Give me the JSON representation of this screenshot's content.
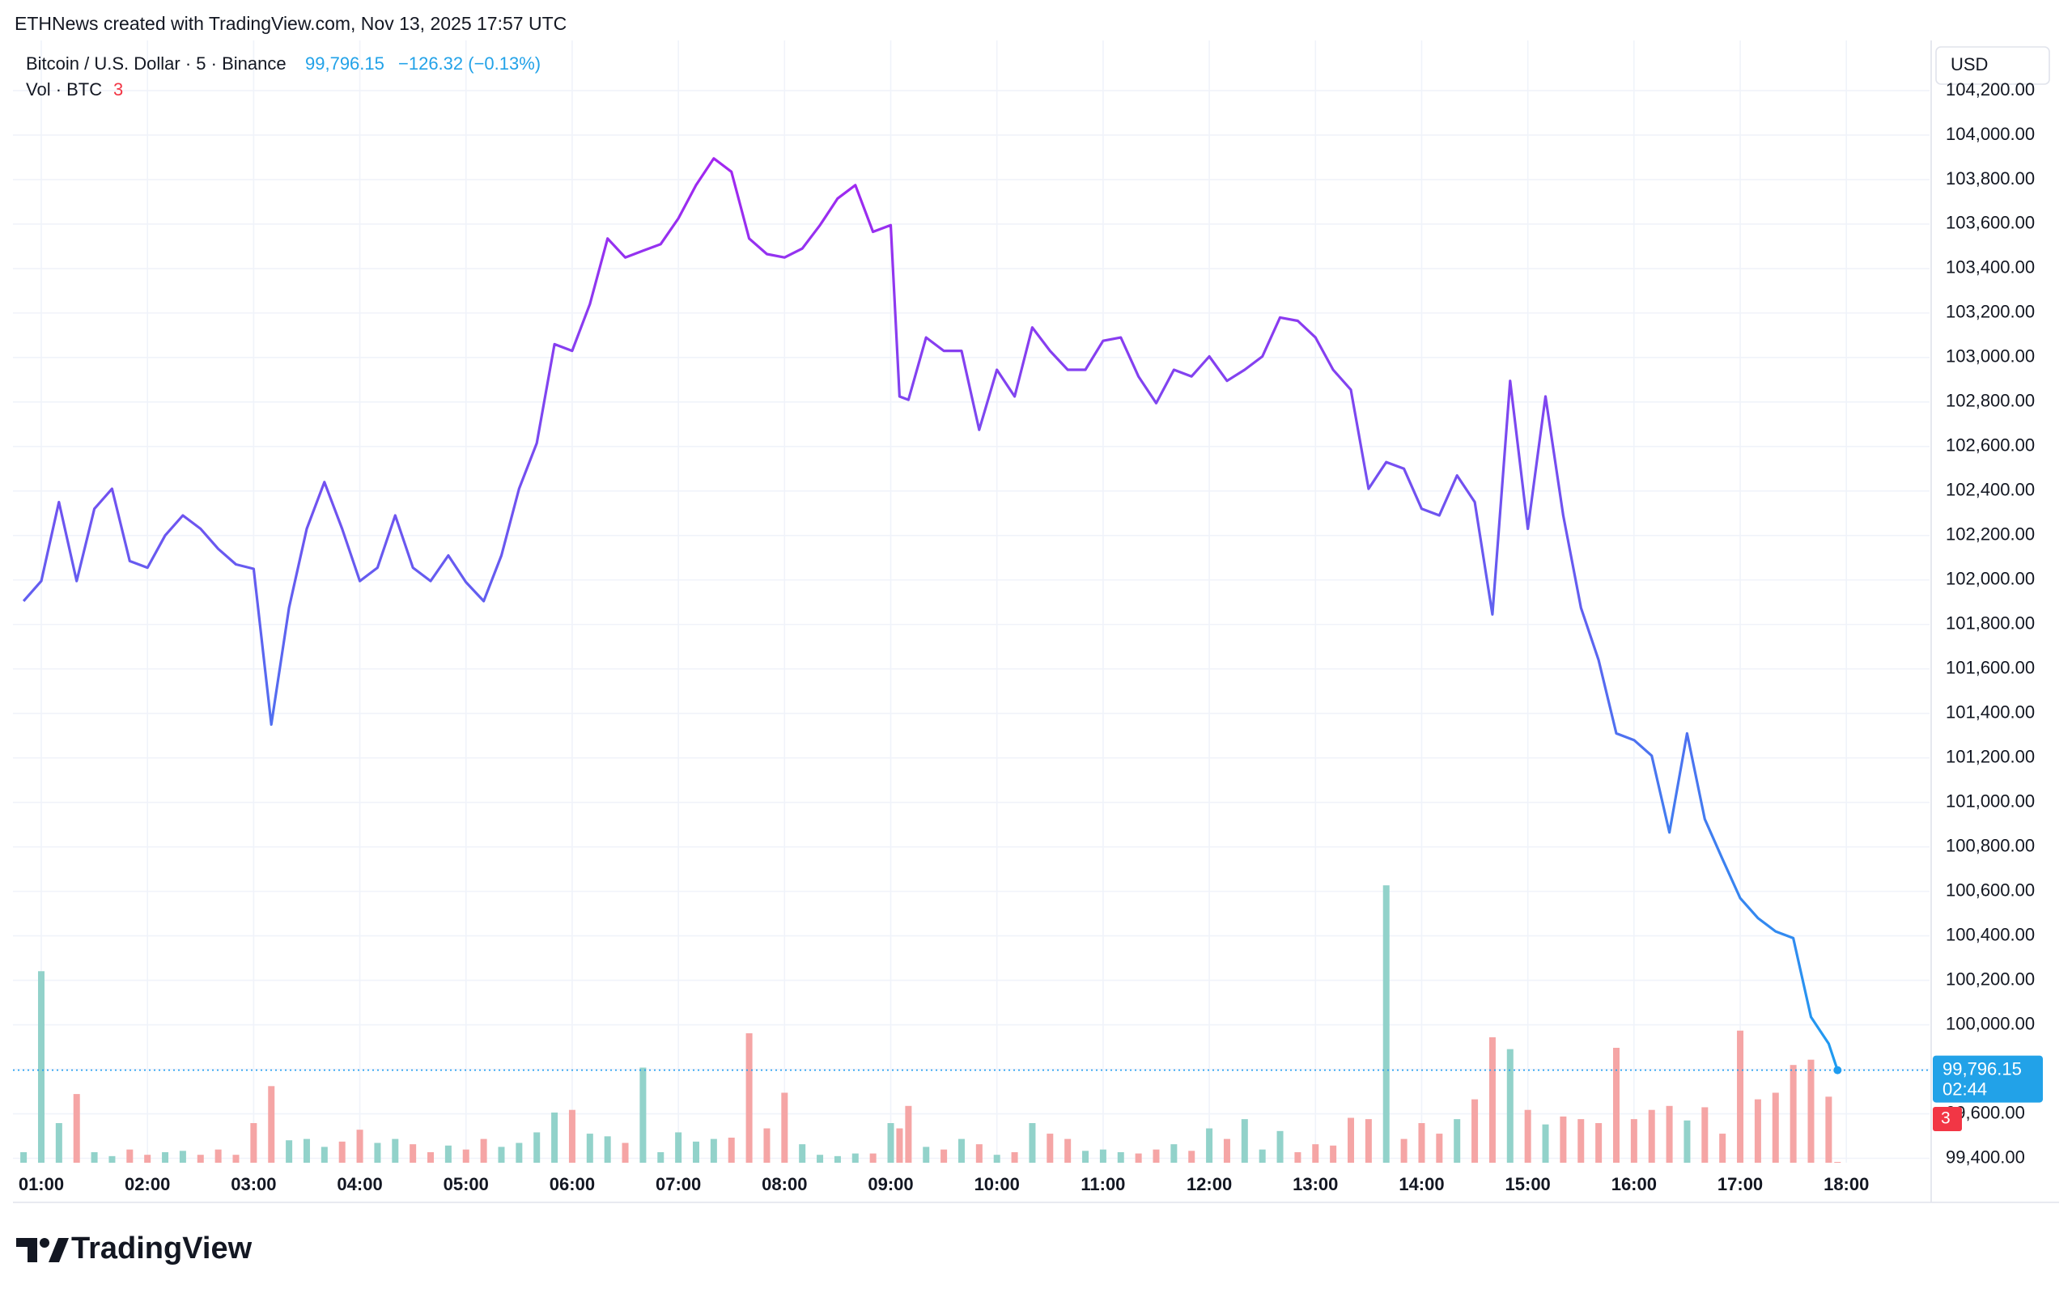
{
  "chart_data": {
    "type": "line",
    "attribution": "ETHNews created with TradingView.com, Nov 13, 2025 17:57 UTC",
    "currency": "USD",
    "change_label": "−126.32 (−0.13%)",
    "countdown": "02:44",
    "brand": "TradingView",
    "x": [
      "00:50",
      "01:00",
      "01:10",
      "01:20",
      "01:30",
      "01:40",
      "01:50",
      "02:00",
      "02:10",
      "02:20",
      "02:30",
      "02:40",
      "02:50",
      "03:00",
      "03:10",
      "03:20",
      "03:30",
      "03:40",
      "03:50",
      "04:00",
      "04:10",
      "04:20",
      "04:30",
      "04:40",
      "04:50",
      "05:00",
      "05:10",
      "05:20",
      "05:30",
      "05:40",
      "05:50",
      "06:00",
      "06:10",
      "06:20",
      "06:30",
      "06:40",
      "06:50",
      "07:00",
      "07:10",
      "07:20",
      "07:30",
      "07:40",
      "07:50",
      "08:00",
      "08:10",
      "08:20",
      "08:30",
      "08:40",
      "08:50",
      "09:00",
      "09:05",
      "09:10",
      "09:20",
      "09:30",
      "09:40",
      "09:50",
      "10:00",
      "10:10",
      "10:20",
      "10:30",
      "10:40",
      "10:50",
      "11:00",
      "11:10",
      "11:20",
      "11:30",
      "11:40",
      "11:50",
      "12:00",
      "12:10",
      "12:20",
      "12:30",
      "12:40",
      "12:50",
      "13:00",
      "13:10",
      "13:20",
      "13:30",
      "13:40",
      "13:50",
      "14:00",
      "14:10",
      "14:20",
      "14:30",
      "14:40",
      "14:50",
      "15:00",
      "15:10",
      "15:20",
      "15:30",
      "15:40",
      "15:50",
      "16:00",
      "16:10",
      "16:20",
      "16:30",
      "16:40",
      "16:50",
      "17:00",
      "17:10",
      "17:20",
      "17:30",
      "17:40",
      "17:50",
      "17:55"
    ],
    "xlim": [
      "00:44",
      "18:47"
    ],
    "xticks": [
      "01:00",
      "02:00",
      "03:00",
      "04:00",
      "05:00",
      "06:00",
      "07:00",
      "08:00",
      "09:00",
      "10:00",
      "11:00",
      "12:00",
      "13:00",
      "14:00",
      "15:00",
      "16:00",
      "17:00",
      "18:00"
    ],
    "ylim": [
      99380,
      104400
    ],
    "yticks": [
      {
        "value": 99400,
        "label": "99,400.00"
      },
      {
        "value": 99600,
        "label": "99,600.00"
      },
      {
        "value": 99800,
        "label": "99,800.00"
      },
      {
        "value": 100000,
        "label": "100,000.00"
      },
      {
        "value": 100200,
        "label": "100,200.00"
      },
      {
        "value": 100400,
        "label": "100,400.00"
      },
      {
        "value": 100600,
        "label": "100,600.00"
      },
      {
        "value": 100800,
        "label": "100,800.00"
      },
      {
        "value": 101000,
        "label": "101,000.00"
      },
      {
        "value": 101200,
        "label": "101,200.00"
      },
      {
        "value": 101400,
        "label": "101,400.00"
      },
      {
        "value": 101600,
        "label": "101,600.00"
      },
      {
        "value": 101800,
        "label": "101,800.00"
      },
      {
        "value": 102000,
        "label": "102,000.00"
      },
      {
        "value": 102200,
        "label": "102,200.00"
      },
      {
        "value": 102400,
        "label": "102,400.00"
      },
      {
        "value": 102600,
        "label": "102,600.00"
      },
      {
        "value": 102800,
        "label": "102,800.00"
      },
      {
        "value": 103000,
        "label": "103,000.00"
      },
      {
        "value": 103200,
        "label": "103,200.00"
      },
      {
        "value": 103400,
        "label": "103,400.00"
      },
      {
        "value": 103600,
        "label": "103,600.00"
      },
      {
        "value": 103800,
        "label": "103,800.00"
      },
      {
        "value": 104000,
        "label": "104,000.00"
      },
      {
        "value": 104200,
        "label": "104,200.00"
      }
    ],
    "vol_ylim": [
      0,
      2000
    ],
    "grid": true,
    "series": [
      {
        "name": "Bitcoin / U.S. Dollar · 5 · Binance",
        "colors": [
          "#a226f0",
          "#1e9cf0"
        ],
        "last_value_label": "99,796.15",
        "values": [
          101905,
          101995,
          102350,
          101995,
          102320,
          102410,
          102085,
          102055,
          102200,
          102290,
          102230,
          102140,
          102070,
          102050,
          101350,
          101875,
          102230,
          102440,
          102230,
          101995,
          102055,
          102290,
          102055,
          101995,
          102110,
          101990,
          101905,
          102110,
          102410,
          102615,
          103060,
          103030,
          103240,
          103535,
          103450,
          103480,
          103510,
          103625,
          103775,
          103895,
          103835,
          103535,
          103465,
          103450,
          103490,
          103595,
          103715,
          103775,
          103565,
          103595,
          102825,
          102810,
          103090,
          103030,
          103030,
          102675,
          102945,
          102825,
          103135,
          103030,
          102945,
          102945,
          103075,
          103090,
          102915,
          102795,
          102945,
          102915,
          103005,
          102895,
          102945,
          103005,
          103180,
          103165,
          103090,
          102945,
          102855,
          102410,
          102530,
          102500,
          102320,
          102290,
          102470,
          102350,
          101845,
          102895,
          102230,
          102825,
          102290,
          101875,
          101640,
          101310,
          101280,
          101210,
          100865,
          101310,
          100925,
          100745,
          100570,
          100480,
          100420,
          100390,
          100035,
          99915,
          99796.15
        ]
      },
      {
        "name": "Vol · BTC",
        "type": "bar",
        "axis": "volume",
        "up_color": "#92d2ca",
        "down_color": "#f5a5a5",
        "last_color": "#f23645",
        "values": [
          40,
          725,
          150,
          260,
          40,
          25,
          50,
          30,
          40,
          45,
          30,
          50,
          30,
          150,
          290,
          85,
          90,
          60,
          80,
          125,
          75,
          90,
          70,
          40,
          65,
          50,
          90,
          60,
          75,
          115,
          190,
          200,
          110,
          100,
          75,
          360,
          40,
          115,
          80,
          90,
          95,
          490,
          130,
          265,
          70,
          30,
          25,
          35,
          35,
          150,
          130,
          215,
          60,
          50,
          90,
          70,
          30,
          40,
          150,
          110,
          90,
          45,
          50,
          40,
          35,
          50,
          70,
          45,
          130,
          90,
          165,
          50,
          120,
          40,
          70,
          65,
          170,
          165,
          1050,
          90,
          150,
          110,
          165,
          240,
          475,
          430,
          200,
          145,
          175,
          165,
          150,
          435,
          165,
          200,
          215,
          160,
          210,
          110,
          500,
          240,
          265,
          370,
          390,
          250,
          3
        ]
      }
    ]
  }
}
